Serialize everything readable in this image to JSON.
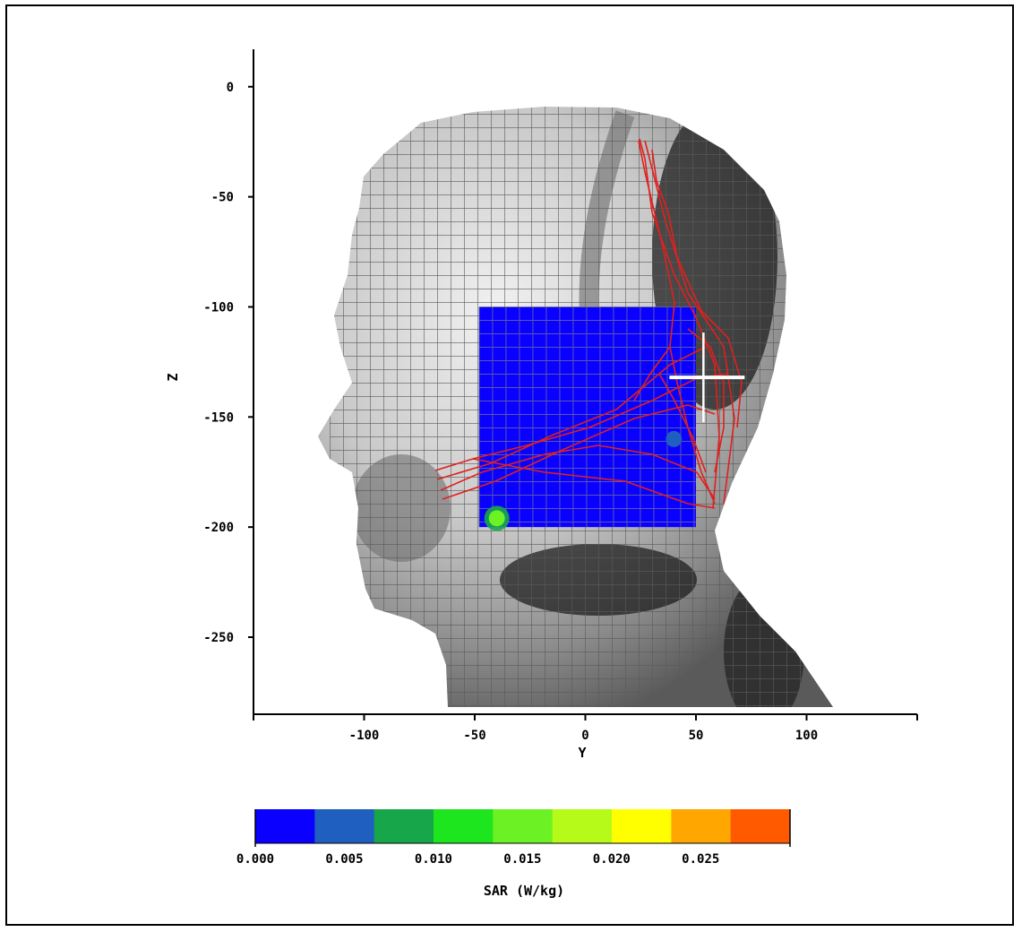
{
  "chart_data": {
    "type": "heatmap",
    "title": "",
    "xlabel": "Y",
    "ylabel": "Z",
    "xlim": [
      -150,
      150
    ],
    "ylim": [
      -285,
      17
    ],
    "xticks": [
      -100,
      -50,
      0,
      50,
      100
    ],
    "yticks": [
      0,
      -50,
      -100,
      -150,
      -200,
      -250
    ],
    "sar_region": {
      "y_range": [
        -48,
        50
      ],
      "z_range": [
        -100,
        -200
      ],
      "background_value": 0.0
    },
    "hotspots": [
      {
        "y": -40,
        "z": -196,
        "value": 0.016
      },
      {
        "y": 40,
        "z": -160,
        "value": 0.004
      }
    ],
    "marker": {
      "type": "crosshair",
      "y": 55,
      "z": -132
    },
    "colorbar": {
      "label": "SAR (W/kg)",
      "tick_labels": [
        "0.000",
        "0.005",
        "0.010",
        "0.015",
        "0.020",
        "0.025"
      ],
      "colors": [
        "#0a00ff",
        "#1f5fbf",
        "#17a64a",
        "#1ee61e",
        "#6cf224",
        "#b6fa1a",
        "#ffff00",
        "#ffa600",
        "#ff5a00"
      ]
    }
  }
}
